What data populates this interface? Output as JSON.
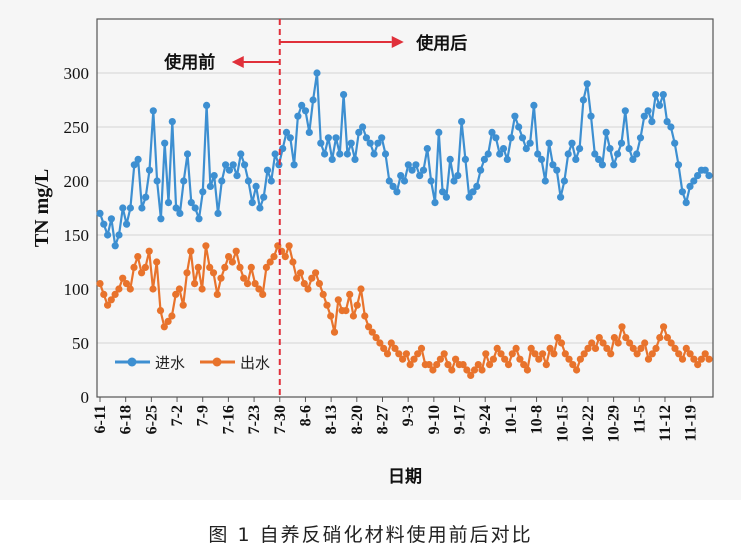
{
  "caption": "图 1 自养反硝化材料使用前后对比",
  "chart_data": {
    "type": "line",
    "ylabel": "TN mg/L",
    "xlabel": "日期",
    "ylim": [
      0,
      350
    ],
    "yticks": [
      0,
      50,
      100,
      150,
      200,
      250,
      300
    ],
    "grid": true,
    "legend_position": "bottom-left",
    "x_ticks": [
      "6-11",
      "6-18",
      "6-25",
      "7-2",
      "7-9",
      "7-16",
      "7-23",
      "7-30",
      "8-6",
      "8-13",
      "8-20",
      "8-27",
      "9-3",
      "9-10",
      "9-17",
      "9-24",
      "10-1",
      "10-8",
      "10-15",
      "10-22",
      "10-29",
      "11-5",
      "11-12",
      "11-19"
    ],
    "x_start": "6-11",
    "x_end": "11-24",
    "divider": {
      "x": "7-30",
      "before_label": "使用前",
      "after_label": "使用后"
    },
    "series": [
      {
        "name": "进水",
        "color": "#3d8fd1",
        "values": [
          170,
          160,
          150,
          165,
          140,
          150,
          175,
          160,
          175,
          215,
          220,
          175,
          185,
          210,
          265,
          200,
          165,
          235,
          180,
          255,
          175,
          170,
          200,
          225,
          180,
          175,
          165,
          190,
          270,
          195,
          205,
          170,
          200,
          215,
          210,
          215,
          205,
          225,
          215,
          200,
          180,
          195,
          175,
          185,
          210,
          200,
          225,
          215,
          230,
          245,
          240,
          215,
          260,
          270,
          265,
          245,
          275,
          300,
          235,
          225,
          240,
          220,
          240,
          225,
          280,
          225,
          235,
          220,
          245,
          250,
          240,
          235,
          225,
          235,
          240,
          225,
          200,
          195,
          190,
          205,
          200,
          215,
          210,
          215,
          205,
          210,
          230,
          200,
          180,
          245,
          190,
          185,
          220,
          200,
          205,
          255,
          220,
          185,
          190,
          195,
          210,
          220,
          225,
          245,
          240,
          225,
          230,
          220,
          240,
          260,
          250,
          240,
          230,
          235,
          270,
          225,
          220,
          200,
          235,
          215,
          210,
          185,
          200,
          225,
          235,
          220,
          230,
          275,
          290,
          260,
          225,
          220,
          215,
          245,
          230,
          215,
          225,
          235,
          265,
          230,
          220,
          225,
          240,
          260,
          265,
          255,
          280,
          270,
          280,
          255,
          250,
          235,
          215,
          190,
          180,
          195,
          200,
          205,
          210,
          210,
          205
        ]
      },
      {
        "name": "出水",
        "color": "#e8732c",
        "values": [
          105,
          95,
          85,
          90,
          95,
          100,
          110,
          105,
          100,
          120,
          130,
          115,
          120,
          135,
          100,
          125,
          80,
          65,
          70,
          75,
          95,
          100,
          85,
          115,
          135,
          105,
          120,
          100,
          140,
          120,
          115,
          95,
          110,
          120,
          130,
          125,
          135,
          120,
          110,
          105,
          120,
          105,
          100,
          95,
          120,
          125,
          130,
          140,
          135,
          130,
          140,
          125,
          110,
          115,
          105,
          100,
          110,
          115,
          105,
          95,
          85,
          75,
          60,
          90,
          80,
          80,
          95,
          75,
          85,
          100,
          75,
          65,
          60,
          55,
          50,
          45,
          40,
          50,
          45,
          40,
          35,
          40,
          30,
          35,
          40,
          45,
          30,
          30,
          25,
          30,
          35,
          40,
          30,
          25,
          35,
          30,
          30,
          25,
          20,
          25,
          30,
          25,
          40,
          30,
          35,
          45,
          40,
          35,
          30,
          40,
          45,
          35,
          30,
          25,
          45,
          40,
          35,
          40,
          30,
          45,
          40,
          55,
          50,
          40,
          35,
          30,
          25,
          35,
          40,
          45,
          50,
          45,
          55,
          50,
          45,
          40,
          55,
          50,
          65,
          55,
          50,
          45,
          40,
          45,
          50,
          35,
          40,
          45,
          55,
          65,
          55,
          50,
          45,
          40,
          35,
          45,
          40,
          35,
          30,
          35,
          40,
          35
        ]
      }
    ]
  }
}
